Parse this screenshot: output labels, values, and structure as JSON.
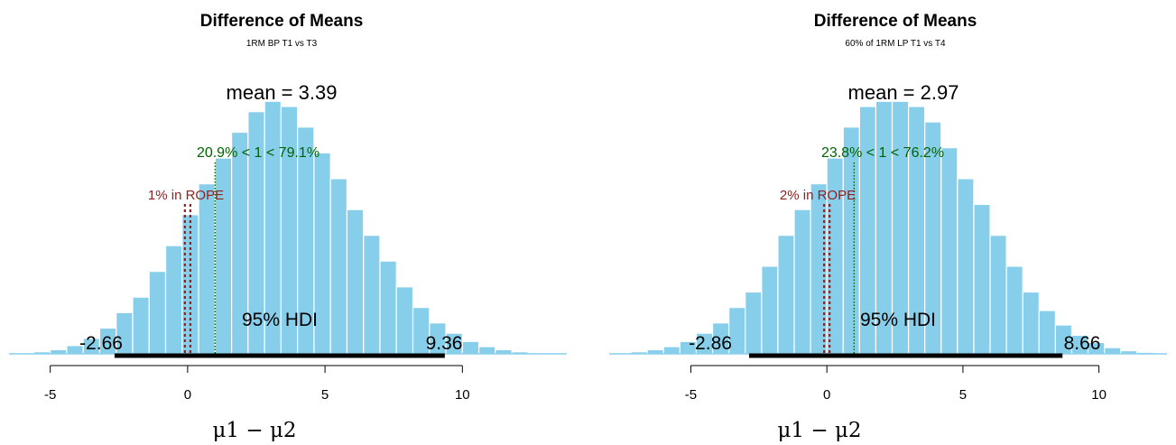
{
  "colors": {
    "bar": "#87ceeb",
    "bar_edge": "#ffffff",
    "comp": "#006400",
    "rope": "#8b2323",
    "hdi": "#000000"
  },
  "chart_data": [
    {
      "type": "histogram",
      "title": "Difference of Means",
      "subtitle": "1RM BP T1 vs T3",
      "xlabel": "μ1 − μ2",
      "xlim": [
        -6.5,
        13.8
      ],
      "xticks": [
        -5,
        0,
        5,
        10
      ],
      "mean_label": "mean = 3.39",
      "comp_value": 1,
      "comp_label": "20.9% < 1 < 79.1%",
      "rope": [
        -0.1,
        0.1
      ],
      "rope_label": "1% in ROPE",
      "hdi": [
        -2.66,
        9.36
      ],
      "hdi_label": "95% HDI",
      "hdi_low_label": "-2.66",
      "hdi_high_label": "9.36",
      "bins": {
        "left": [
          -5.6,
          -5.0,
          -4.4,
          -3.8,
          -3.2,
          -2.6,
          -2.0,
          -1.4,
          -0.8,
          -0.2,
          0.4,
          1.0,
          1.6,
          2.2,
          2.8,
          3.4,
          4.0,
          4.6,
          5.2,
          5.8,
          6.4,
          7.0,
          7.6,
          8.2,
          8.8,
          9.4,
          10.0,
          10.6,
          11.2,
          11.8,
          12.4,
          13.0
        ],
        "width": 0.6,
        "density": [
          0.002,
          0.004,
          0.008,
          0.015,
          0.025,
          0.04,
          0.055,
          0.08,
          0.105,
          0.135,
          0.165,
          0.19,
          0.215,
          0.235,
          0.245,
          0.24,
          0.22,
          0.195,
          0.17,
          0.14,
          0.115,
          0.09,
          0.065,
          0.045,
          0.03,
          0.02,
          0.012,
          0.007,
          0.004,
          0.002,
          0.001,
          0.0005
        ]
      },
      "ylim": [
        0,
        0.275
      ]
    },
    {
      "type": "histogram",
      "title": "Difference of Means",
      "subtitle": "60% of 1RM LP T1 vs T4",
      "xlabel": "μ1 − μ2",
      "xlim": [
        -8.0,
        12.5
      ],
      "xticks": [
        -5,
        0,
        5,
        10
      ],
      "mean_label": "mean = 2.97",
      "comp_value": 1,
      "comp_label": "23.8% < 1 < 76.2%",
      "rope": [
        -0.1,
        0.1
      ],
      "rope_label": "2% in ROPE",
      "hdi": [
        -2.86,
        8.66
      ],
      "hdi_label": "95% HDI",
      "hdi_low_label": "-2.86",
      "hdi_high_label": "8.66",
      "bins": {
        "left": [
          -7.2,
          -6.6,
          -6.0,
          -5.4,
          -4.8,
          -4.2,
          -3.6,
          -3.0,
          -2.4,
          -1.8,
          -1.2,
          -0.6,
          0.0,
          0.6,
          1.2,
          1.8,
          2.4,
          3.0,
          3.6,
          4.2,
          4.8,
          5.4,
          6.0,
          6.6,
          7.2,
          7.8,
          8.4,
          9.0,
          9.6,
          10.2,
          10.8,
          11.4
        ],
        "width": 0.6,
        "density": [
          0.002,
          0.004,
          0.007,
          0.012,
          0.02,
          0.03,
          0.045,
          0.06,
          0.085,
          0.115,
          0.14,
          0.165,
          0.19,
          0.22,
          0.24,
          0.245,
          0.245,
          0.24,
          0.225,
          0.2,
          0.17,
          0.145,
          0.115,
          0.085,
          0.06,
          0.042,
          0.028,
          0.018,
          0.011,
          0.006,
          0.003,
          0.0015
        ]
      },
      "ylim": [
        0,
        0.275
      ]
    }
  ]
}
